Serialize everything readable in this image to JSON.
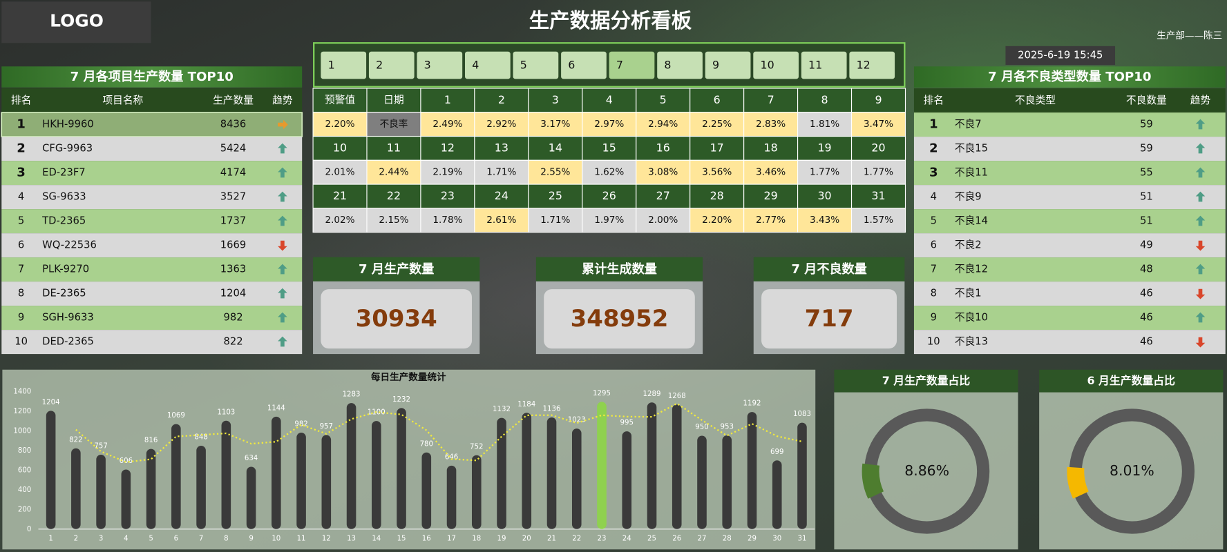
{
  "header": {
    "logo": "LOGO",
    "title": "生产数据分析看板",
    "department": "生产部——陈三",
    "datetime": "2025-6-19 15:45"
  },
  "months": {
    "items": [
      1,
      2,
      3,
      4,
      5,
      6,
      7,
      8,
      9,
      10,
      11,
      12
    ],
    "selected": 7
  },
  "left_table": {
    "title": "7 月各项目生产数量 TOP10",
    "columns": [
      "排名",
      "项目名称",
      "生产数量",
      "趋势"
    ],
    "rows": [
      [
        1,
        "HKH-9960",
        8436
      ],
      [
        2,
        "CFG-9963",
        5424
      ],
      [
        3,
        "ED-23F7",
        4174
      ],
      [
        4,
        "SG-9633",
        3527
      ],
      [
        5,
        "TD-2365",
        1737
      ],
      [
        6,
        "WQ-22536",
        1669
      ],
      [
        7,
        "PLK-9270",
        1363
      ],
      [
        8,
        "DE-2365",
        1204
      ],
      [
        9,
        "SGH-9633",
        982
      ],
      [
        10,
        "DED-2365",
        822
      ]
    ],
    "trend": [
      "right",
      "up",
      "up",
      "up",
      "up",
      "down",
      "up",
      "up",
      "up",
      "up"
    ]
  },
  "right_table": {
    "title": "7 月各不良类型数量 TOP10",
    "columns": [
      "排名",
      "不良类型",
      "不良数量",
      "趋势"
    ],
    "rows": [
      [
        1,
        "不良7",
        59
      ],
      [
        2,
        "不良15",
        59
      ],
      [
        3,
        "不良11",
        55
      ],
      [
        4,
        "不良9",
        51
      ],
      [
        5,
        "不良14",
        51
      ],
      [
        6,
        "不良2",
        49
      ],
      [
        7,
        "不良12",
        48
      ],
      [
        8,
        "不良1",
        46
      ],
      [
        9,
        "不良10",
        46
      ],
      [
        10,
        "不良13",
        46
      ]
    ],
    "trend": [
      "up",
      "up",
      "up",
      "up",
      "up",
      "down",
      "up",
      "down",
      "up",
      "down"
    ]
  },
  "trend_colors": {
    "up": "#4f9d86",
    "down": "#d9462b",
    "right": "#e69a2e"
  },
  "calendar": {
    "headers": [
      "预警值",
      "日期"
    ],
    "threshold": "2.20%",
    "rate_label": "不良率",
    "days": [
      1,
      2,
      3,
      4,
      5,
      6,
      7,
      8,
      9,
      10,
      11,
      12,
      13,
      14,
      15,
      16,
      17,
      18,
      19,
      20,
      21,
      22,
      23,
      24,
      25,
      26,
      27,
      28,
      29,
      30,
      31
    ],
    "rates": [
      "2.49%",
      "2.92%",
      "3.17%",
      "2.97%",
      "2.94%",
      "2.25%",
      "2.83%",
      "1.81%",
      "3.47%",
      "2.01%",
      "2.44%",
      "2.19%",
      "1.71%",
      "2.55%",
      "1.62%",
      "3.08%",
      "3.56%",
      "3.46%",
      "1.77%",
      "1.77%",
      "2.02%",
      "2.15%",
      "1.78%",
      "2.61%",
      "1.71%",
      "1.97%",
      "2.00%",
      "2.20%",
      "2.77%",
      "3.43%",
      "1.57%"
    ],
    "alert_color": "#ffe699",
    "normal_color": "#d9d9d9"
  },
  "kpis": [
    {
      "label": "7 月生产数量",
      "value": 30934
    },
    {
      "label": "累计生成数量",
      "value": 348952
    },
    {
      "label": "7 月不良数量",
      "value": 717
    }
  ],
  "chart_data": [
    {
      "type": "bar",
      "title": "每日生产数量统计",
      "categories": [
        1,
        2,
        3,
        4,
        5,
        6,
        7,
        8,
        9,
        10,
        11,
        12,
        13,
        14,
        15,
        16,
        17,
        18,
        19,
        20,
        21,
        22,
        23,
        24,
        25,
        26,
        27,
        28,
        29,
        30,
        31
      ],
      "values": [
        1204,
        822,
        757,
        606,
        816,
        1069,
        848,
        1103,
        634,
        1144,
        982,
        957,
        1283,
        1100,
        1232,
        780,
        646,
        752,
        1132,
        1184,
        1136,
        1023,
        1295,
        995,
        1289,
        1268,
        950,
        953,
        1192,
        699,
        1083
      ],
      "color": "#3a3a3a",
      "highlight_color": "#8fd14f",
      "line_values": [
        null,
        1013,
        789.5,
        681.5,
        711,
        942.5,
        958.5,
        975.5,
        868.5,
        889,
        1063,
        969.5,
        1120,
        1191.5,
        1166,
        1006,
        713,
        699,
        942,
        1158,
        1160,
        1079.5,
        1159,
        1145,
        1142,
        1278.5,
        1109,
        951.5,
        1072.5,
        945.5,
        891
      ],
      "line_color": "#f2ea3c",
      "ylim": [
        0,
        1400
      ],
      "yticks": [
        0,
        200,
        400,
        600,
        800,
        1000,
        1200,
        1400
      ]
    },
    {
      "type": "donut",
      "title": "7 月生产数量占比",
      "values": [
        8.86
      ],
      "value_labels": [
        "8.86%"
      ],
      "color": "#4e7d2f",
      "track_color": "#595959"
    },
    {
      "type": "donut",
      "title": "6 月生产数量占比",
      "values": [
        8.01
      ],
      "value_labels": [
        "8.01%"
      ],
      "color": "#f5b800",
      "track_color": "#595959"
    }
  ]
}
